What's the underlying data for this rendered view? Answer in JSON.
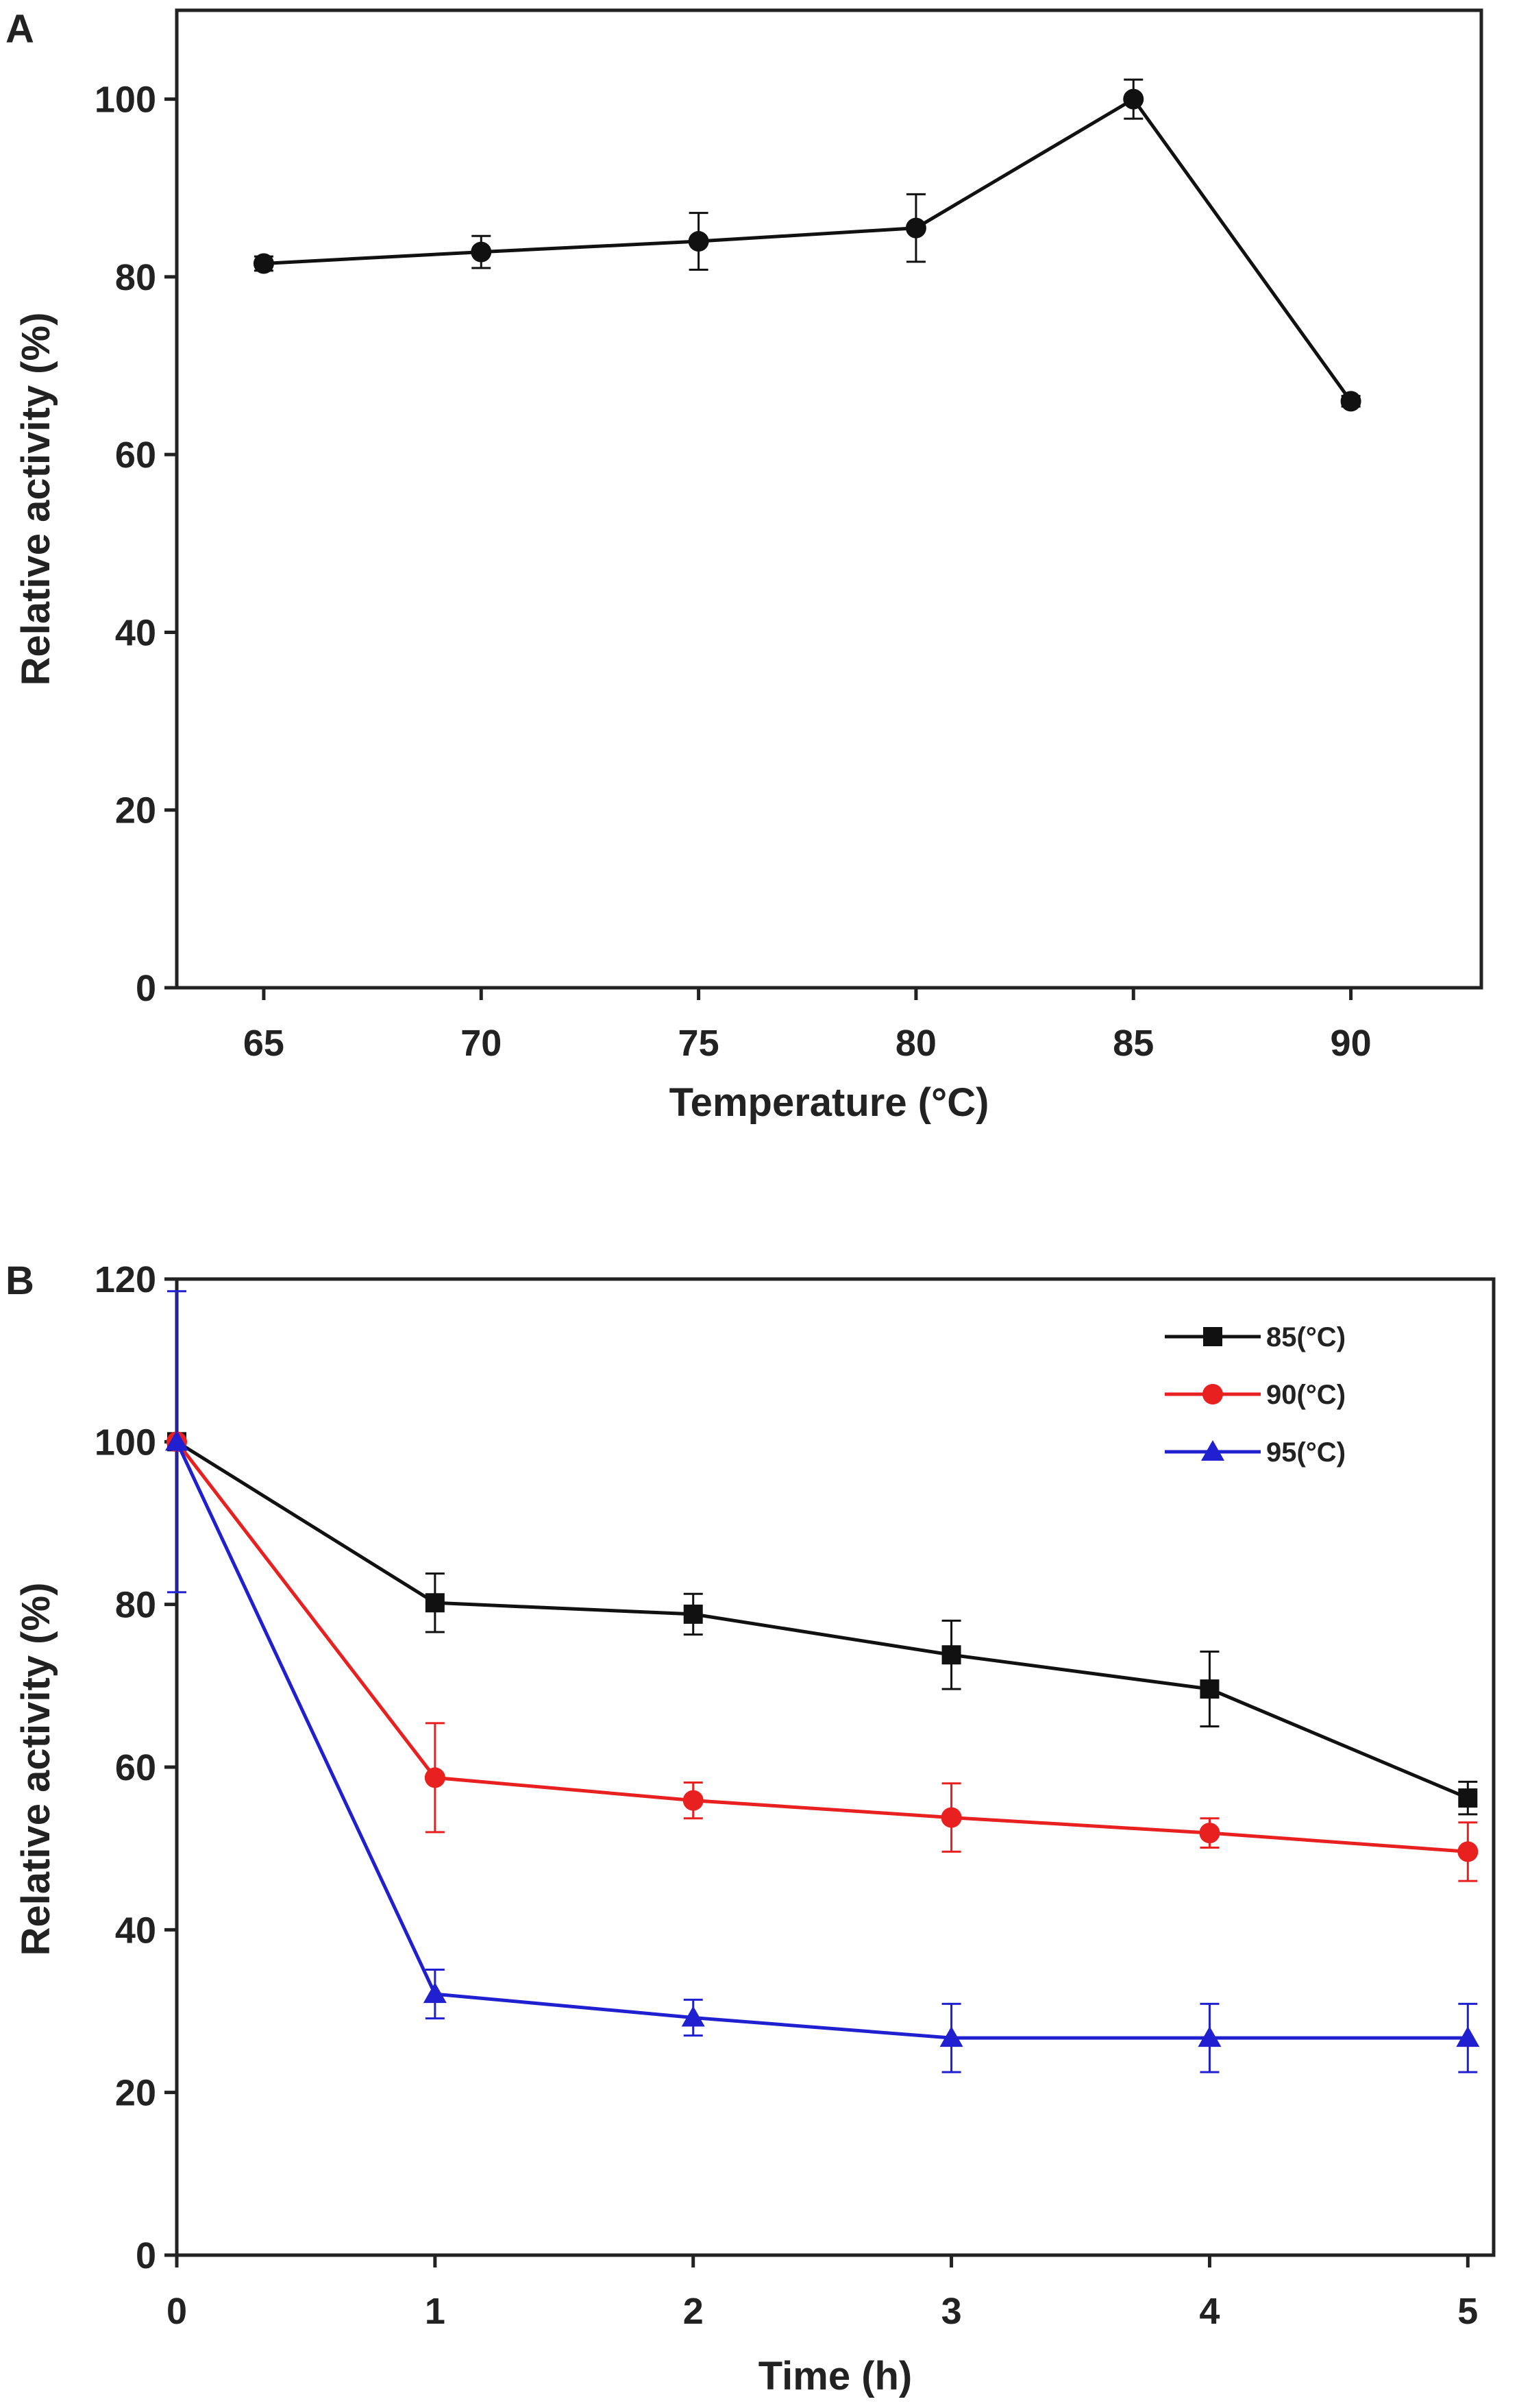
{
  "chart_data": [
    {
      "panel": "A",
      "type": "line",
      "title": "",
      "xlabel": "Temperature (°C)",
      "ylabel": "Relative activity (%)",
      "x": [
        65,
        70,
        75,
        80,
        85,
        90
      ],
      "x_ticks": [
        65,
        70,
        75,
        80,
        85,
        90
      ],
      "xlim": [
        63,
        93
      ],
      "ylim": [
        0,
        110
      ],
      "y_ticks": [
        0,
        20,
        40,
        60,
        80,
        100
      ],
      "grid": false,
      "series": [
        {
          "name": "activity",
          "color": "#111111",
          "marker": "circle",
          "values": [
            81.5,
            82.8,
            84.0,
            85.5,
            100.0,
            66.0
          ],
          "errors": [
            0.8,
            1.8,
            3.2,
            3.8,
            2.2,
            0.6
          ]
        }
      ]
    },
    {
      "panel": "B",
      "type": "line",
      "title": "",
      "xlabel": "Time (h)",
      "ylabel": "Relative activity (%)",
      "x": [
        0,
        1,
        2,
        3,
        4,
        5
      ],
      "x_ticks": [
        0,
        1,
        2,
        3,
        4,
        5
      ],
      "xlim": [
        0,
        5.1
      ],
      "ylim": [
        0,
        120
      ],
      "y_ticks": [
        0,
        20,
        40,
        60,
        80,
        100,
        120
      ],
      "grid": false,
      "legend_position": "top-right",
      "series": [
        {
          "name": "85(°C)",
          "color": "#111111",
          "marker": "square",
          "values": [
            100.0,
            80.2,
            78.8,
            73.8,
            69.6,
            56.2
          ],
          "errors": [
            0,
            3.6,
            2.5,
            4.2,
            4.6,
            2.0
          ]
        },
        {
          "name": "90(°C)",
          "color": "#e82020",
          "marker": "circle",
          "values": [
            100.0,
            58.7,
            55.9,
            53.8,
            51.9,
            49.6
          ],
          "errors": [
            0,
            6.7,
            2.2,
            4.2,
            1.8,
            3.6
          ]
        },
        {
          "name": "95(°C)",
          "color": "#2020d0",
          "marker": "triangle",
          "values": [
            100.0,
            32.1,
            29.2,
            26.7,
            26.7,
            26.7
          ],
          "errors": [
            18.5,
            3.0,
            2.2,
            4.2,
            4.2,
            4.2
          ]
        }
      ]
    }
  ]
}
